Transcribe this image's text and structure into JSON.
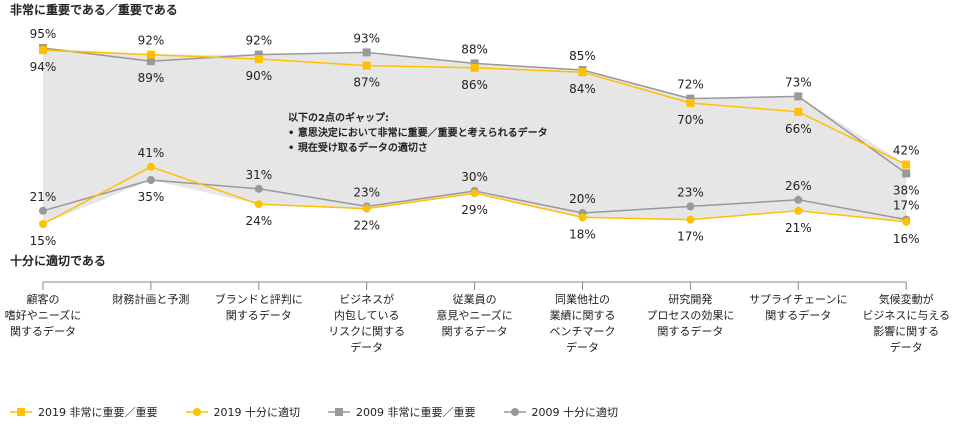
{
  "chart_data": {
    "type": "line",
    "title_top": "非常に重要である／重要である",
    "title_bottom": "十分に適切である",
    "annotation": {
      "heading": "以下の2点のギャップ:",
      "bullets": [
        "• 意思決定において非常に重要／重要と考えられるデータ",
        "• 現在受け取るデータの適切さ"
      ]
    },
    "categories": [
      "顧客の\n嗜好やニーズに\n関するデータ",
      "財務計画と予測",
      "ブランドと評判に\n関するデータ",
      "ビジネスが\n内包している\nリスクに関する\nデータ",
      "従業員の\n意見やニーズに\n関するデータ",
      "同業他社の\n業績に関する\nベンチマーク\nデータ",
      "研究開発\nプロセスの効果に\n関するデータ",
      "サプライチェーンに\n関するデータ",
      "気候変動が\nビジネスに与える\n影響に関する\nデータ"
    ],
    "series": [
      {
        "name": "2019 非常に重要／重要",
        "color": "#FFC000",
        "marker": "square",
        "values": [
          94,
          92,
          90,
          87,
          86,
          84,
          70,
          66,
          42
        ]
      },
      {
        "name": "2019 十分に適切",
        "color": "#FFC000",
        "marker": "circle",
        "values": [
          15,
          41,
          24,
          22,
          29,
          18,
          17,
          21,
          16
        ]
      },
      {
        "name": "2009 非常に重要／重要",
        "color": "#999999",
        "marker": "square",
        "values": [
          95,
          89,
          92,
          93,
          88,
          85,
          72,
          73,
          38
        ]
      },
      {
        "name": "2009 十分に適切",
        "color": "#999999",
        "marker": "circle",
        "values": [
          21,
          35,
          31,
          23,
          30,
          20,
          23,
          26,
          17
        ]
      }
    ],
    "unit": "%",
    "legend": "bottom"
  }
}
